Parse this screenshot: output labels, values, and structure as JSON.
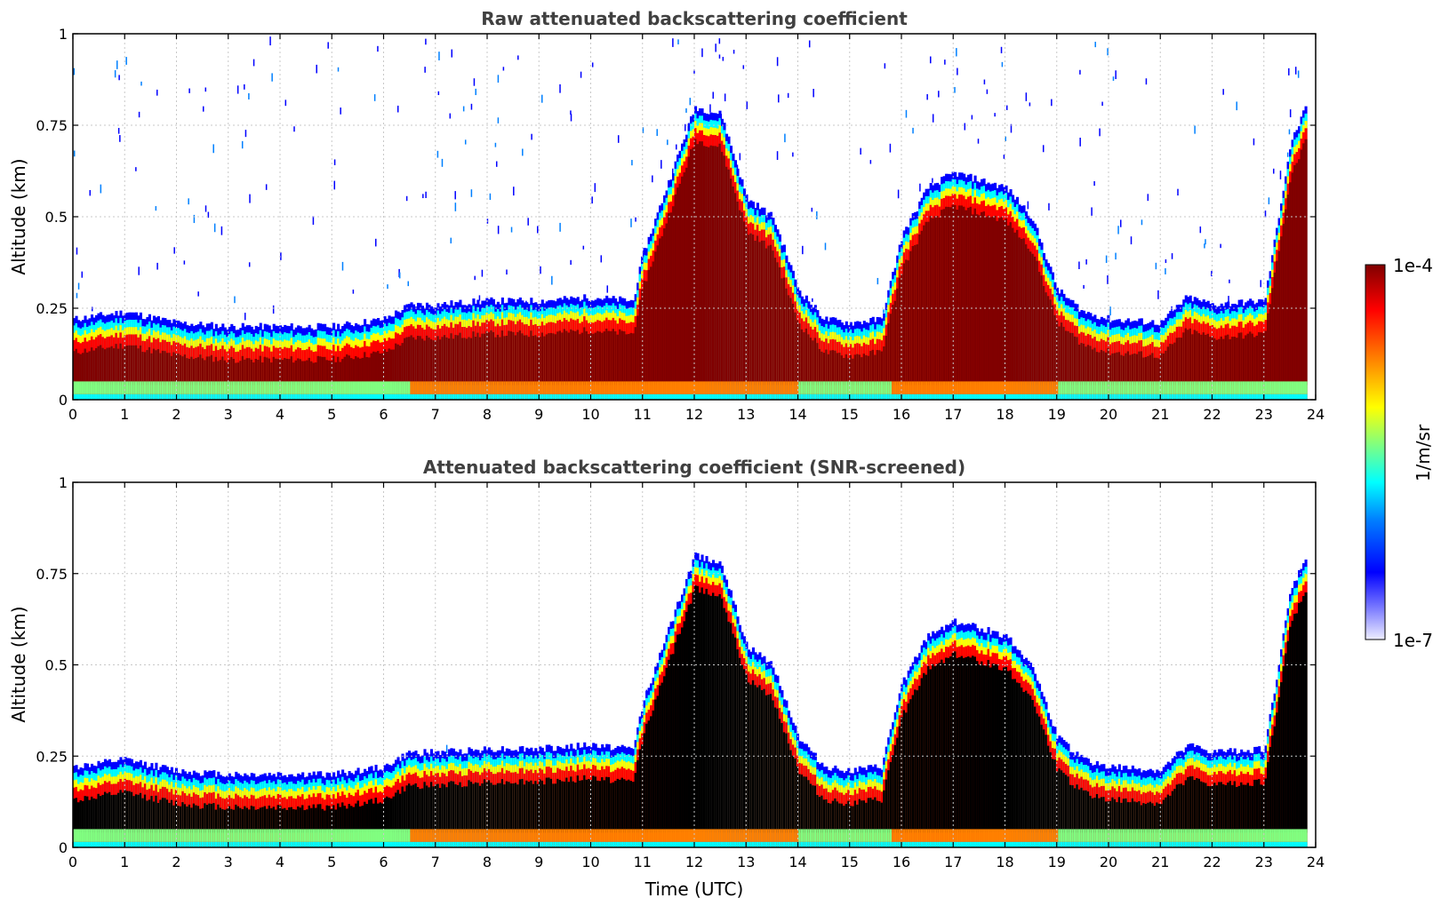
{
  "chart_data": [
    {
      "type": "heatmap",
      "title": "Raw attenuated backscattering coefficient",
      "ylabel": "Altitude (km)",
      "xlabel": "",
      "xlim": [
        0,
        24
      ],
      "ylim": [
        0,
        1
      ],
      "x_ticks": [
        "0",
        "1",
        "2",
        "3",
        "4",
        "5",
        "6",
        "7",
        "8",
        "9",
        "10",
        "11",
        "12",
        "13",
        "14",
        "15",
        "16",
        "17",
        "18",
        "19",
        "20",
        "21",
        "22",
        "23",
        "24"
      ],
      "y_ticks": [
        "0",
        "0.25",
        "0.5",
        "0.75",
        "1"
      ],
      "grid": true,
      "screened": false,
      "layer_top_km": [
        [
          0,
          0.22
        ],
        [
          1,
          0.24
        ],
        [
          2,
          0.21
        ],
        [
          3,
          0.2
        ],
        [
          4,
          0.2
        ],
        [
          5,
          0.2
        ],
        [
          6,
          0.22
        ],
        [
          6.5,
          0.26
        ],
        [
          7,
          0.26
        ],
        [
          8,
          0.27
        ],
        [
          9,
          0.27
        ],
        [
          10,
          0.28
        ],
        [
          10.8,
          0.27
        ],
        [
          11,
          0.4
        ],
        [
          11.5,
          0.6
        ],
        [
          12,
          0.8
        ],
        [
          12.5,
          0.78
        ],
        [
          13,
          0.55
        ],
        [
          13.5,
          0.5
        ],
        [
          14,
          0.3
        ],
        [
          14.5,
          0.22
        ],
        [
          15,
          0.21
        ],
        [
          15.6,
          0.22
        ],
        [
          16,
          0.45
        ],
        [
          16.5,
          0.58
        ],
        [
          17,
          0.62
        ],
        [
          17.5,
          0.6
        ],
        [
          18,
          0.58
        ],
        [
          18.5,
          0.5
        ],
        [
          19,
          0.3
        ],
        [
          19.5,
          0.24
        ],
        [
          20,
          0.22
        ],
        [
          21,
          0.21
        ],
        [
          21.5,
          0.28
        ],
        [
          22,
          0.26
        ],
        [
          23,
          0.27
        ],
        [
          23.5,
          0.7
        ],
        [
          23.8,
          0.8
        ]
      ]
    },
    {
      "type": "heatmap",
      "title": "Attenuated backscattering coefficient (SNR-screened)",
      "ylabel": "Altitude (km)",
      "xlabel": "Time (UTC)",
      "xlim": [
        0,
        24
      ],
      "ylim": [
        0,
        1
      ],
      "x_ticks": [
        "0",
        "1",
        "2",
        "3",
        "4",
        "5",
        "6",
        "7",
        "8",
        "9",
        "10",
        "11",
        "12",
        "13",
        "14",
        "15",
        "16",
        "17",
        "18",
        "19",
        "20",
        "21",
        "22",
        "23",
        "24"
      ],
      "y_ticks": [
        "0",
        "0.25",
        "0.5",
        "0.75",
        "1"
      ],
      "grid": true,
      "screened": true
    }
  ],
  "colorbar": {
    "label": "1/m/sr",
    "max_label": "1e-4",
    "min_label": "1e-7",
    "colors": [
      "#eeeeff",
      "#8080ff",
      "#0000ff",
      "#0080ff",
      "#00ffff",
      "#80ff80",
      "#ffff00",
      "#ff8000",
      "#ff0000",
      "#800000"
    ]
  }
}
